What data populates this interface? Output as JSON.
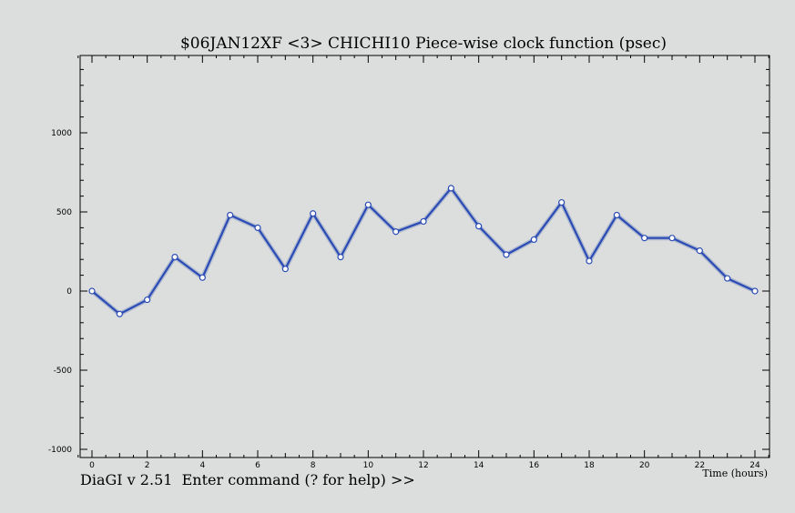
{
  "app": {
    "prompt": "DiaGI v 2.51  Enter command (? for help) >>"
  },
  "chart_data": {
    "type": "line",
    "title": "$06JAN12XF <3>  CHICHI10  Piece-wise clock function (psec)",
    "xlabel": "Time (hours)",
    "ylabel": "",
    "xlim": [
      -0.5,
      24.5
    ],
    "ylim": [
      -1000,
      1000
    ],
    "x_ticks": [
      0,
      2,
      4,
      6,
      8,
      10,
      12,
      14,
      16,
      18,
      20,
      22,
      24
    ],
    "y_ticks": [
      -1000,
      -500,
      0,
      500,
      1000
    ],
    "grid": false,
    "colors": {
      "line": "#2a4bb5",
      "shadow": "#9aa8c8",
      "marker_fill": "#ffffff",
      "frame": "#000000"
    },
    "series": [
      {
        "x": [
          0,
          1,
          2,
          3,
          4,
          5,
          6,
          7,
          8,
          9,
          10,
          11,
          12,
          13,
          14,
          15,
          16,
          17,
          18,
          19,
          20,
          21,
          22,
          23,
          24
        ],
        "values": [
          0,
          -145,
          -55,
          215,
          85,
          480,
          400,
          140,
          490,
          215,
          545,
          375,
          440,
          650,
          410,
          230,
          325,
          560,
          190,
          480,
          335,
          335,
          255,
          80,
          0
        ]
      }
    ]
  }
}
